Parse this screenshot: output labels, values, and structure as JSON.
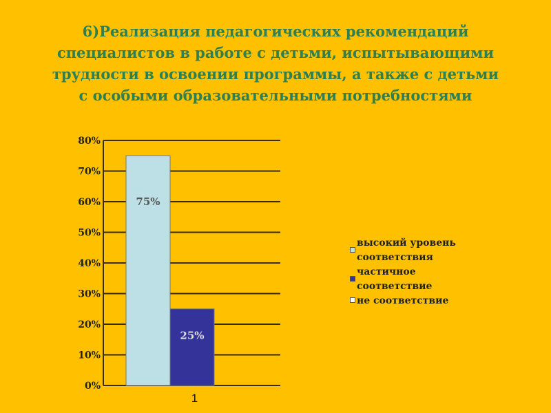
{
  "title_lines": [
    "6)Реализация педагогических рекомендаций",
    "специалистов в работе с детьми, испытывающими",
    "трудности в освоении программы, а также с детьми",
    "с особыми образовательными потребностями"
  ],
  "chart_data": {
    "type": "bar",
    "title": "6)Реализация педагогических рекомендаций специалистов в работе с детьми, испытывающими трудности в освоении программы, а также с детьми с особыми образовательными потребностями",
    "categories": [
      "1"
    ],
    "series": [
      {
        "name": "высокий уровень соответствия",
        "values": [
          75
        ],
        "label": "75%",
        "color": "#bde0e6"
      },
      {
        "name": "частичное соответствие",
        "values": [
          25
        ],
        "label": "25%",
        "color": "#333399"
      },
      {
        "name": "не соответствие",
        "values": [
          0
        ],
        "label": "",
        "color": "#ffffff"
      }
    ],
    "ylim": [
      0,
      80
    ],
    "yticks": [
      "0%",
      "10%",
      "20%",
      "30%",
      "40%",
      "50%",
      "60%",
      "70%",
      "80%"
    ],
    "grid": true,
    "legend": "right"
  }
}
